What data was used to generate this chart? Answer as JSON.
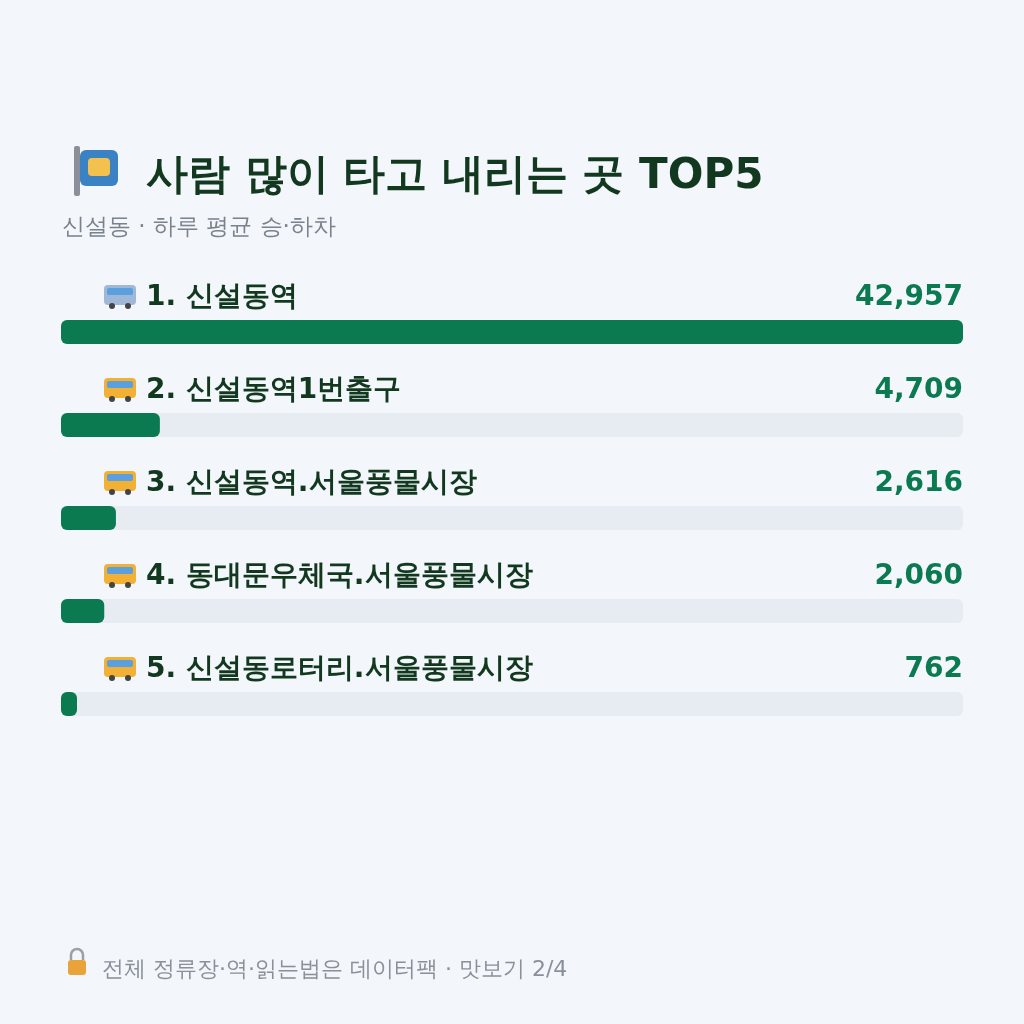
{
  "chart_data": {
    "type": "bar",
    "orientation": "horizontal",
    "title": "사람 많이 타고 내리는 곳 TOP5",
    "subtitle": "신설동 · 하루 평균 승·하차",
    "categories": [
      "1. 신설동역",
      "2. 신설동역1번출구",
      "3. 신설동역.서울풍물시장",
      "4. 동대문우체국.서울풍물시장",
      "5. 신설동로터리.서울풍물시장"
    ],
    "values": [
      42957,
      4709,
      2616,
      2060,
      762
    ],
    "value_labels": [
      "42,957",
      "4,709",
      "2,616",
      "2,060",
      "762"
    ],
    "color": "#0b7a50",
    "annotations": [
      "전체 정류장·역·읽는법은 데이터팩 · 맛보기 2/4"
    ]
  }
}
